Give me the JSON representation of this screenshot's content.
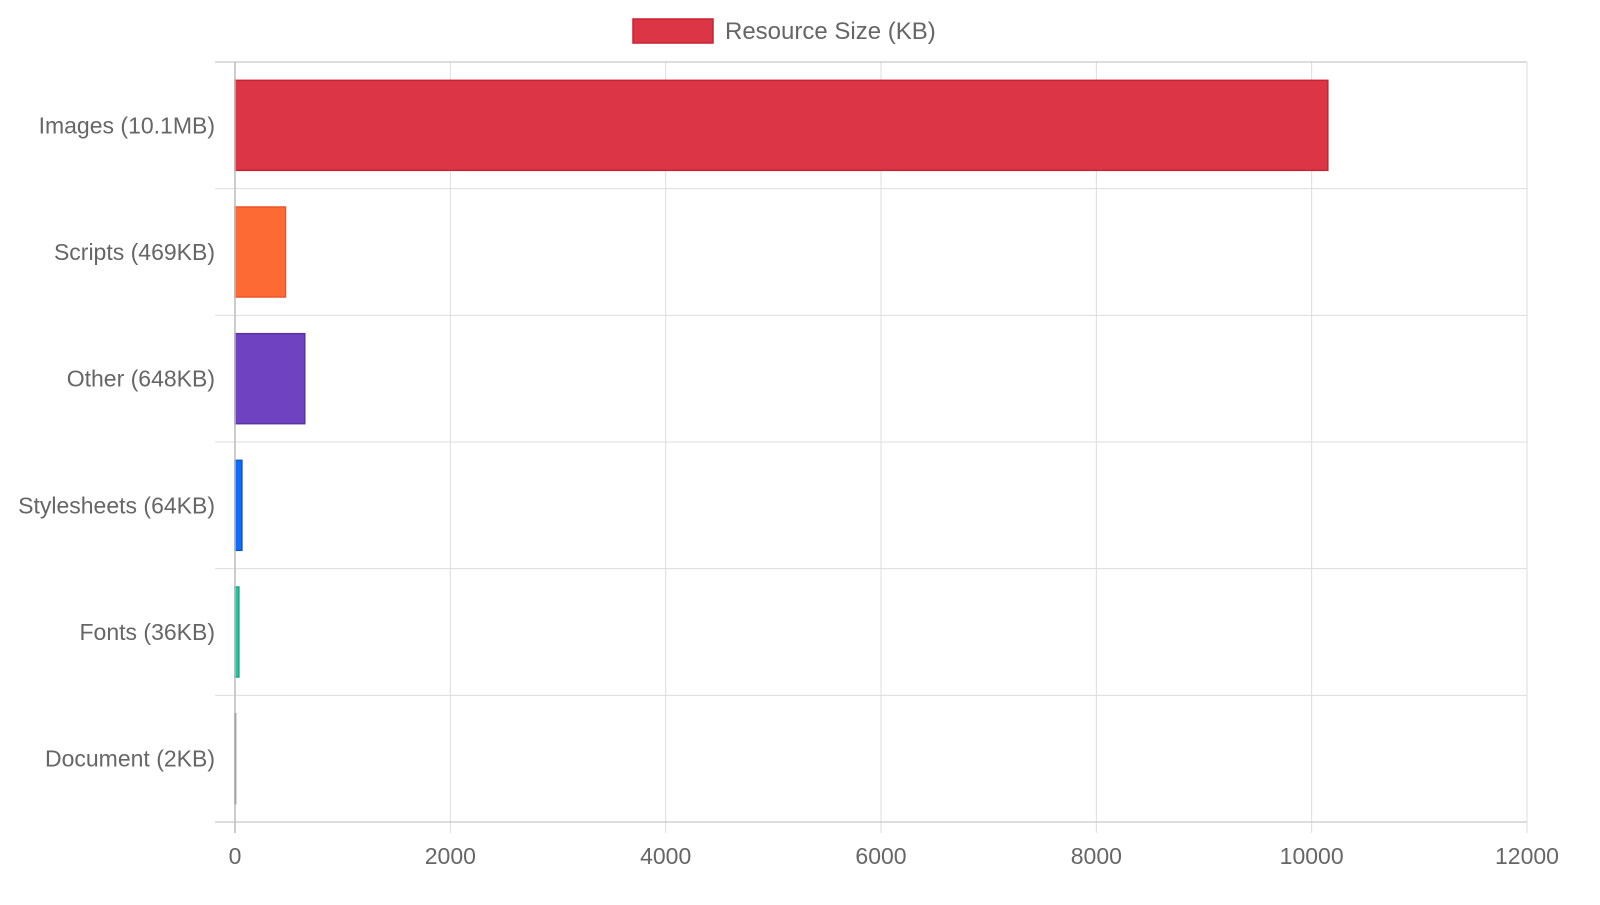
{
  "chart_data": {
    "type": "bar",
    "orientation": "horizontal",
    "categories": [
      "Images (10.1MB)",
      "Scripts (469KB)",
      "Other (648KB)",
      "Stylesheets (64KB)",
      "Fonts (36KB)",
      "Document (2KB)"
    ],
    "series": [
      {
        "name": "Resource Size (KB)",
        "values": [
          10150,
          469,
          648,
          64,
          36,
          2
        ],
        "colors": [
          "#dc3545",
          "#fd6a33",
          "#6f42c1",
          "#0d6efd",
          "#20c997",
          "#6c757d"
        ],
        "border_colors": [
          "#c82333",
          "#e8562a",
          "#5a32a3",
          "#0a58ca",
          "#17a589",
          "#5a6268"
        ]
      }
    ],
    "x_ticks": [
      "0",
      "2000",
      "4000",
      "6000",
      "8000",
      "10000",
      "12000"
    ],
    "xlim": [
      0,
      12000
    ],
    "grid": true,
    "legend_position": "top-center",
    "legend_color": "#dc3545",
    "legend_border_color": "#c82333",
    "grid_color": "#dddddd",
    "axis_color": "#bbbbbb",
    "text_color": "#666666"
  }
}
